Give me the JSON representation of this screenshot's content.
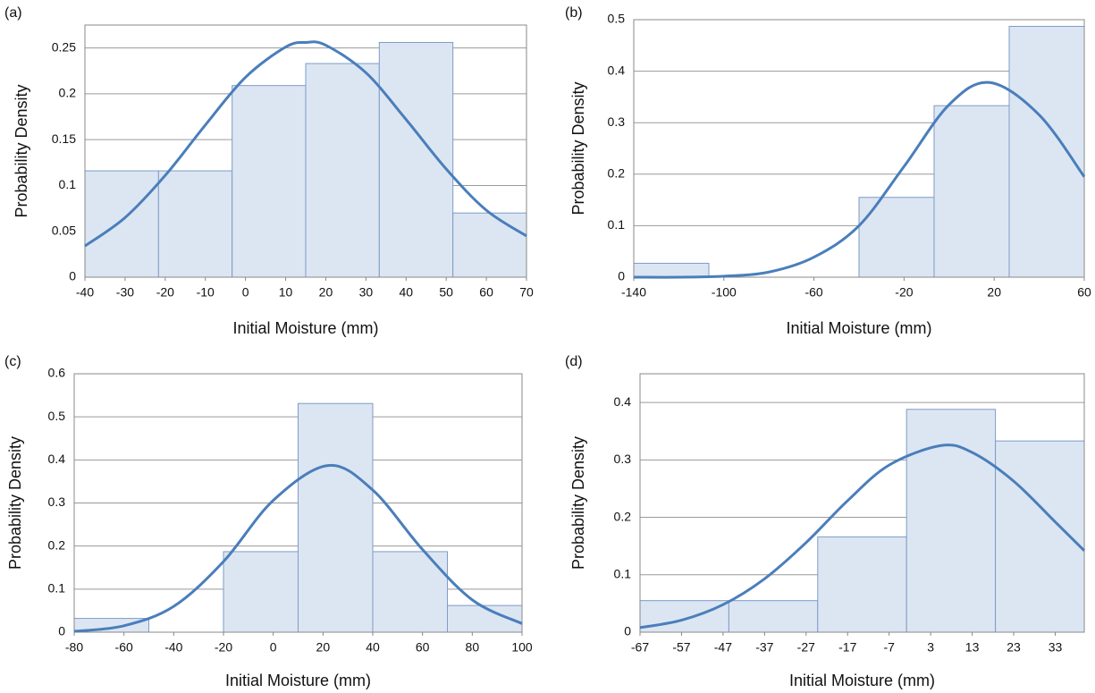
{
  "chart_data": [
    {
      "type": "histogram",
      "label": "(a)",
      "x_label": "Initial Moisture (mm)",
      "y_label": "Probability Density",
      "bins": [
        -40,
        -21.67,
        -3.33,
        15,
        33.33,
        51.67,
        70
      ],
      "values": [
        0.116,
        0.116,
        0.209,
        0.233,
        0.256,
        0.07
      ],
      "color": "#dce6f2",
      "curve": {
        "color": "#4a7ebb",
        "x": [
          -40,
          -30,
          -20,
          -10,
          0,
          10,
          15,
          20,
          30,
          40,
          50,
          60,
          70
        ],
        "values": [
          0.034,
          0.065,
          0.111,
          0.166,
          0.218,
          0.251,
          0.256,
          0.253,
          0.223,
          0.172,
          0.118,
          0.073,
          0.045
        ]
      },
      "xlim": [
        -40,
        70
      ],
      "xticks": [
        -40,
        -30,
        -20,
        -10,
        0,
        10,
        20,
        30,
        40,
        50,
        60,
        70
      ],
      "ylim": [
        0,
        0.275
      ],
      "yticks": [
        0,
        0.05,
        0.1,
        0.15,
        0.2,
        0.25
      ],
      "grid": true
    },
    {
      "type": "histogram",
      "label": "(b)",
      "x_label": "Initial Moisture (mm)",
      "y_label": "Probability Density",
      "bins": [
        -140,
        -106.67,
        -73.33,
        -40,
        -6.67,
        26.67,
        60
      ],
      "values": [
        0.027,
        0,
        0,
        0.155,
        0.333,
        0.487
      ],
      "color": "#dce6f2",
      "curve": {
        "color": "#4a7ebb",
        "x": [
          -140,
          -120,
          -100,
          -80,
          -60,
          -40,
          -20,
          0,
          18,
          40,
          60
        ],
        "values": [
          0,
          0,
          0.002,
          0.01,
          0.039,
          0.1,
          0.215,
          0.335,
          0.378,
          0.315,
          0.195
        ]
      },
      "xlim": [
        -140,
        60
      ],
      "xticks": [
        -140,
        -100,
        -60,
        -20,
        20,
        60
      ],
      "ylim": [
        0,
        0.5
      ],
      "yticks": [
        0,
        0.1,
        0.2,
        0.3,
        0.4,
        0.5
      ],
      "grid": true
    },
    {
      "type": "histogram",
      "label": "(c)",
      "x_label": "Initial Moisture (mm)",
      "y_label": "Probability Density",
      "bins": [
        -80,
        -50,
        -20,
        10,
        40,
        70,
        100
      ],
      "values": [
        0.032,
        0,
        0.187,
        0.531,
        0.187,
        0.062
      ],
      "color": "#dce6f2",
      "curve": {
        "color": "#4a7ebb",
        "x": [
          -80,
          -60,
          -40,
          -20,
          0,
          22,
          40,
          60,
          80,
          100
        ],
        "values": [
          0.002,
          0.015,
          0.06,
          0.164,
          0.306,
          0.387,
          0.33,
          0.192,
          0.075,
          0.02
        ]
      },
      "xlim": [
        -80,
        100
      ],
      "xticks": [
        -80,
        -60,
        -40,
        -20,
        0,
        20,
        40,
        60,
        80,
        100
      ],
      "ylim": [
        0,
        0.6
      ],
      "yticks": [
        0,
        0.1,
        0.2,
        0.3,
        0.4,
        0.5,
        0.6
      ],
      "grid": true
    },
    {
      "type": "histogram",
      "label": "(d)",
      "x_label": "Initial Moisture (mm)",
      "y_label": "Probability Density",
      "bins": [
        -67,
        -45.6,
        -24.2,
        -2.8,
        18.6,
        40
      ],
      "values": [
        0.055,
        0.055,
        0.166,
        0.388,
        0.333
      ],
      "color": "#dce6f2",
      "curve": {
        "color": "#4a7ebb",
        "x": [
          -67,
          -57,
          -47,
          -37,
          -27,
          -17,
          -7,
          5.5,
          13,
          23,
          33,
          40
        ],
        "values": [
          0.008,
          0.021,
          0.048,
          0.093,
          0.156,
          0.229,
          0.291,
          0.325,
          0.313,
          0.263,
          0.192,
          0.142
        ]
      },
      "xlim": [
        -67,
        40
      ],
      "xticks": [
        -67,
        -57,
        -47,
        -37,
        -27,
        -17,
        -7,
        3,
        13,
        23,
        33
      ],
      "ylim": [
        0,
        0.45
      ],
      "yticks": [
        0,
        0.1,
        0.2,
        0.3,
        0.4
      ],
      "grid": true
    }
  ]
}
